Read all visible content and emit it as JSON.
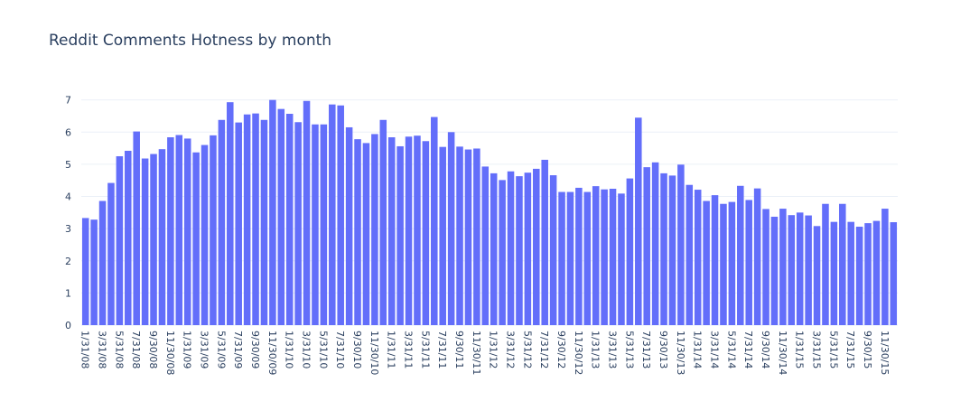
{
  "chart_data": {
    "type": "bar",
    "title": "Reddit Comments Hotness by month",
    "xlabel": "",
    "ylabel": "",
    "ylim": [
      0,
      7.3
    ],
    "yticks": [
      0,
      1,
      2,
      3,
      4,
      5,
      6,
      7
    ],
    "grid": true,
    "bar_color": "#636efa",
    "categories": [
      "1/31/08",
      "2/29/08",
      "3/31/08",
      "4/30/08",
      "5/31/08",
      "6/30/08",
      "7/31/08",
      "8/31/08",
      "9/30/08",
      "10/31/08",
      "11/30/08",
      "12/31/08",
      "1/31/09",
      "2/28/09",
      "3/31/09",
      "4/30/09",
      "5/31/09",
      "6/30/09",
      "7/31/09",
      "8/31/09",
      "9/30/09",
      "10/31/09",
      "11/30/09",
      "12/31/09",
      "1/31/10",
      "2/28/10",
      "3/31/10",
      "4/30/10",
      "5/31/10",
      "6/30/10",
      "7/31/10",
      "8/31/10",
      "9/30/10",
      "10/31/10",
      "11/30/10",
      "12/31/10",
      "1/31/11",
      "2/28/11",
      "3/31/11",
      "4/30/11",
      "5/31/11",
      "6/30/11",
      "7/31/11",
      "8/31/11",
      "9/30/11",
      "10/31/11",
      "11/30/11",
      "12/31/11",
      "1/31/12",
      "2/29/12",
      "3/31/12",
      "4/30/12",
      "5/31/12",
      "6/30/12",
      "7/31/12",
      "8/31/12",
      "9/30/12",
      "10/31/12",
      "11/30/12",
      "12/31/12",
      "1/31/13",
      "2/28/13",
      "3/31/13",
      "4/30/13",
      "5/31/13",
      "6/30/13",
      "7/31/13",
      "8/31/13",
      "9/30/13",
      "10/31/13",
      "11/30/13",
      "12/31/13",
      "1/31/14",
      "2/28/14",
      "3/31/14",
      "4/30/14",
      "5/31/14",
      "6/30/14",
      "7/31/14",
      "8/31/14",
      "9/30/14",
      "10/31/14",
      "11/30/14",
      "12/31/14",
      "1/31/15",
      "2/28/15",
      "3/31/15",
      "4/30/15",
      "5/31/15",
      "6/30/15",
      "7/31/15",
      "8/31/15",
      "9/30/15",
      "10/31/15",
      "11/30/15",
      "12/31/15"
    ],
    "values": [
      3.33,
      3.28,
      3.86,
      4.42,
      5.25,
      5.42,
      6.02,
      5.18,
      5.32,
      5.47,
      5.84,
      5.91,
      5.8,
      5.37,
      5.6,
      5.9,
      6.38,
      6.93,
      6.3,
      6.55,
      6.58,
      6.38,
      7.0,
      6.72,
      6.57,
      6.31,
      6.97,
      6.24,
      6.24,
      6.86,
      6.83,
      6.15,
      5.78,
      5.66,
      5.94,
      6.38,
      5.84,
      5.56,
      5.86,
      5.89,
      5.72,
      6.47,
      5.54,
      6.0,
      5.55,
      5.46,
      5.49,
      4.93,
      4.72,
      4.51,
      4.78,
      4.63,
      4.74,
      4.86,
      5.14,
      4.66,
      4.14,
      4.14,
      4.27,
      4.14,
      4.32,
      4.22,
      4.24,
      4.09,
      4.56,
      6.45,
      4.91,
      5.06,
      4.72,
      4.65,
      4.99,
      4.36,
      4.21,
      3.86,
      4.04,
      3.77,
      3.83,
      4.33,
      3.89,
      4.25,
      3.61,
      3.37,
      3.62,
      3.42,
      3.5,
      3.41,
      3.08,
      3.77,
      3.21,
      3.77,
      3.21,
      3.06,
      3.17,
      3.24,
      3.62,
      3.2
    ],
    "tick_labels_shown": [
      "1/31/08",
      "3/31/08",
      "5/31/08",
      "7/31/08",
      "9/30/08",
      "11/30/08",
      "1/31/09",
      "3/31/09",
      "5/31/09",
      "7/31/09",
      "9/30/09",
      "11/30/09",
      "1/31/10",
      "3/31/10",
      "5/31/10",
      "7/31/10",
      "9/30/10",
      "11/30/10",
      "1/31/11",
      "3/31/11",
      "5/31/11",
      "7/31/11",
      "9/30/11",
      "11/30/11",
      "1/31/12",
      "3/31/12",
      "5/31/12",
      "7/31/12",
      "9/30/12",
      "11/30/12",
      "1/31/13",
      "3/31/13",
      "5/31/13",
      "7/31/13",
      "9/30/13",
      "11/30/13",
      "1/31/14",
      "3/31/14",
      "5/31/14",
      "7/31/14",
      "9/30/14",
      "11/30/14",
      "1/31/15",
      "3/31/15",
      "5/31/15",
      "7/31/15",
      "9/30/15",
      "11/30/15"
    ]
  }
}
